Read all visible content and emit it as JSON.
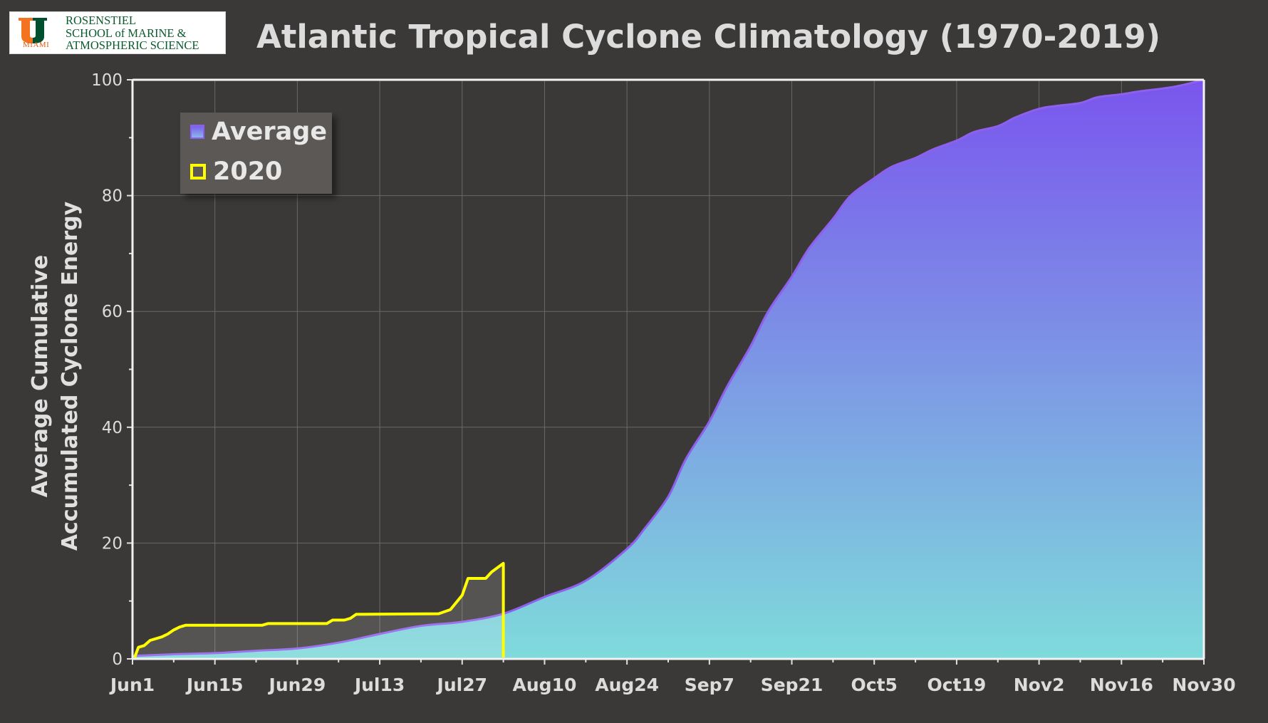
{
  "title": "Atlantic Tropical Cyclone Climatology (1970-2019)",
  "logo": {
    "mark": "U",
    "mark_icon": "university-of-miami-u-logo",
    "miami": "MIAMI",
    "lines": [
      "ROSENSTIEL",
      "SCHOOL of MARINE &",
      "ATMOSPHERIC SCIENCE"
    ],
    "colors": {
      "orange": "#f47321",
      "green": "#005030"
    }
  },
  "colors": {
    "background": "#3a3937",
    "avg_top": "#7a55ee",
    "avg_bottom": "#7fdbdb",
    "avg_edge": "#8f5fee",
    "line_2020": "#ffff00",
    "grid": "#6b6967"
  },
  "chart_data": {
    "type": "area",
    "title": "Atlantic Tropical Cyclone Climatology (1970-2019)",
    "ylabel": [
      "Average Cumulative",
      "Accumulated Cyclone Energy"
    ],
    "xlabel": "",
    "xlim": [
      "Jun1",
      "Nov30"
    ],
    "ylim": [
      0,
      100
    ],
    "y_ticks": [
      0,
      20,
      40,
      60,
      80,
      100
    ],
    "x_tick_labels": [
      "Jun1",
      "Jun15",
      "Jun29",
      "Jul13",
      "Jul27",
      "Aug10",
      "Aug24",
      "Sep7",
      "Sep21",
      "Oct5",
      "Oct19",
      "Nov2",
      "Nov16",
      "Nov30"
    ],
    "grid": true,
    "legend": {
      "position": "top-left",
      "entries": [
        "Average",
        "2020"
      ]
    },
    "series": [
      {
        "name": "Average",
        "type": "area",
        "x": [
          "Jun1",
          "Jun8",
          "Jun15",
          "Jun22",
          "Jun29",
          "Jul6",
          "Jul13",
          "Jul20",
          "Jul27",
          "Aug3",
          "Aug10",
          "Aug17",
          "Aug24",
          "Aug27",
          "Aug31",
          "Sep3",
          "Sep7",
          "Sep10",
          "Sep14",
          "Sep17",
          "Sep21",
          "Sep24",
          "Sep28",
          "Oct1",
          "Oct5",
          "Oct8",
          "Oct12",
          "Oct15",
          "Oct19",
          "Oct22",
          "Oct26",
          "Oct29",
          "Nov2",
          "Nov5",
          "Nov9",
          "Nov12",
          "Nov16",
          "Nov19",
          "Nov23",
          "Nov26",
          "Nov30"
        ],
        "values": [
          0.5,
          0.8,
          1.0,
          1.4,
          1.8,
          2.8,
          4.3,
          5.7,
          6.4,
          7.8,
          10.7,
          13.5,
          19,
          22.5,
          28,
          34.5,
          41,
          47,
          54,
          60,
          66,
          71,
          76,
          80,
          83,
          85,
          86.5,
          88,
          89.5,
          91,
          92,
          93.5,
          95,
          95.5,
          96,
          97,
          97.5,
          98,
          98.5,
          99,
          100
        ]
      },
      {
        "name": "2020",
        "type": "line",
        "x": [
          "Jun1",
          "Jun2",
          "Jun3",
          "Jun4",
          "Jun6",
          "Jun7",
          "Jun8",
          "Jun9",
          "Jun10",
          "Jun11",
          "Jun23",
          "Jun24",
          "Jun26",
          "Jul4",
          "Jul5",
          "Jul7",
          "Jul8",
          "Jul9",
          "Jul23",
          "Jul25",
          "Jul27",
          "Jul28",
          "Jul31",
          "Aug1",
          "Aug3",
          "Aug3",
          "Aug3"
        ],
        "values": [
          0,
          2,
          2.3,
          3.2,
          3.8,
          4.3,
          5.0,
          5.5,
          5.8,
          5.8,
          5.8,
          6.1,
          6.1,
          6.1,
          6.7,
          6.7,
          7.0,
          7.7,
          7.8,
          8.5,
          11.0,
          13.9,
          13.9,
          15.0,
          16.5,
          16.5,
          0
        ]
      }
    ]
  }
}
